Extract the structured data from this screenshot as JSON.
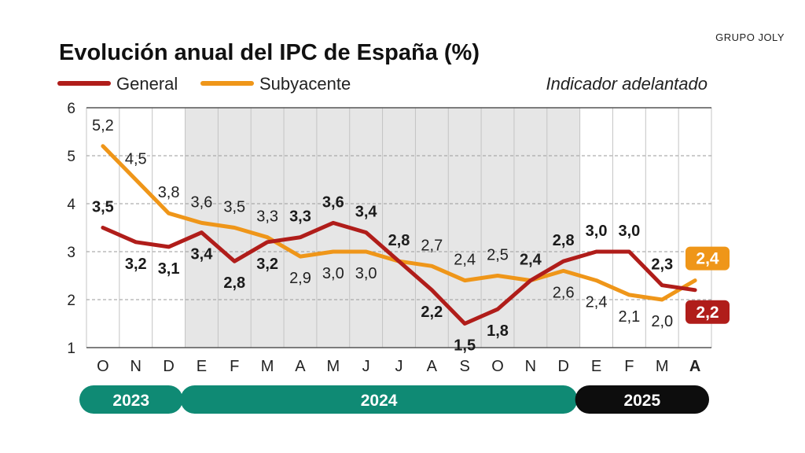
{
  "title": "Evolución anual del IPC de España (%)",
  "brand": "GRUPO JOLY",
  "note": "Indicador adelantado",
  "colors": {
    "general": "#b01d1a",
    "subyacente": "#ef9619",
    "shade": "#e6e6e6",
    "year_2023": "#0f8a74",
    "year_2024": "#0f8a74",
    "year_2025": "#0d0d0d"
  },
  "chart_data": {
    "type": "line",
    "title": "Evolución anual del IPC de España (%)",
    "categories": [
      "O",
      "N",
      "D",
      "E",
      "F",
      "M",
      "A",
      "M",
      "J",
      "J",
      "A",
      "S",
      "O",
      "N",
      "D",
      "E",
      "F",
      "M",
      "A"
    ],
    "highlight_last_category": true,
    "ylim": [
      1,
      6
    ],
    "yticks": [
      "1",
      "2",
      "3",
      "4",
      "5",
      "6"
    ],
    "grid": true,
    "legend": "top-left",
    "series": [
      {
        "name": "General",
        "color": "#b01d1a",
        "values": [
          3.5,
          3.2,
          3.1,
          3.4,
          2.8,
          3.2,
          3.3,
          3.6,
          3.4,
          2.8,
          2.2,
          1.5,
          1.8,
          2.4,
          2.8,
          3.0,
          3.0,
          2.3,
          2.2
        ],
        "labels": [
          "3,5",
          "3,2",
          "3,1",
          "3,4",
          "2,8",
          "3,2",
          "3,3",
          "3,6",
          "3,4",
          "2,8",
          "2,2",
          "1,5",
          "1,8",
          "2,4",
          "2,8",
          "3,0",
          "3,0",
          "2,3",
          "2,2"
        ]
      },
      {
        "name": "Subyacente",
        "color": "#ef9619",
        "values": [
          5.2,
          4.5,
          3.8,
          3.6,
          3.5,
          3.3,
          2.9,
          3.0,
          3.0,
          2.8,
          2.7,
          2.4,
          2.5,
          2.4,
          2.6,
          2.4,
          2.1,
          2.0,
          2.4
        ],
        "labels": [
          "5,2",
          "4,5",
          "3,8",
          "3,6",
          "3,5",
          "3,3",
          "2,9",
          "3,0",
          "3,0",
          "2,8",
          "2,7",
          "2,4",
          "2,5",
          "2,4",
          "2,6",
          "2,4",
          "2,1",
          "2,0",
          "2,4"
        ]
      }
    ],
    "years": [
      {
        "label": "2023",
        "from": 0,
        "to": 2
      },
      {
        "label": "2024",
        "from": 3,
        "to": 14
      },
      {
        "label": "2025",
        "from": 15,
        "to": 18
      }
    ],
    "shaded_range": [
      3,
      14
    ]
  }
}
